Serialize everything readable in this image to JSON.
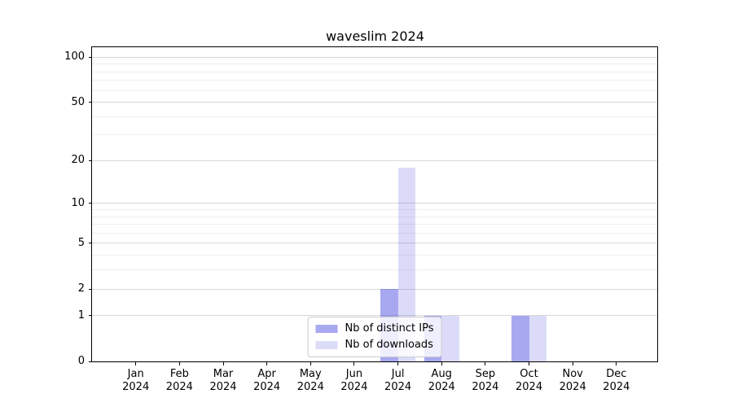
{
  "title": "waveslim 2024",
  "chart_data": {
    "type": "bar",
    "title": "waveslim 2024",
    "categories": [
      "Jan 2024",
      "Feb 2024",
      "Mar 2024",
      "Apr 2024",
      "May 2024",
      "Jun 2024",
      "Jul 2024",
      "Aug 2024",
      "Sep 2024",
      "Oct 2024",
      "Nov 2024",
      "Dec 2024"
    ],
    "series": [
      {
        "name": "Nb of distinct IPs",
        "color": "rgba(30,30,220,0.39)",
        "color_hex": "#a9a9f1",
        "values": [
          0,
          0,
          0,
          0,
          0,
          0,
          2,
          1,
          0,
          1,
          0,
          0
        ]
      },
      {
        "name": "Nb of downloads",
        "color": "rgba(30,30,220,0.16)",
        "color_hex": "#dcdcf9",
        "values": [
          0,
          0,
          0,
          0,
          0,
          0,
          18,
          1,
          0,
          1,
          0,
          0
        ]
      }
    ],
    "xlabel": "",
    "ylabel": "",
    "yscale": "log1p",
    "ylim": [
      0,
      117
    ],
    "y_ticks": [
      {
        "value": 0,
        "label": "0"
      },
      {
        "value": 1,
        "label": "1"
      },
      {
        "value": 2,
        "label": "2"
      },
      {
        "value": 5,
        "label": "5"
      },
      {
        "value": 10,
        "label": "10"
      },
      {
        "value": 20,
        "label": "20"
      },
      {
        "value": 50,
        "label": "50"
      },
      {
        "value": 100,
        "label": "100"
      }
    ],
    "y_minor_gridlines": [
      3,
      4,
      6,
      7,
      8,
      9,
      30,
      40,
      60,
      70,
      80,
      90
    ],
    "grid": "y",
    "legend_position": "lower center"
  },
  "colors": {
    "background": "#ffffff",
    "spine": "#000000",
    "major_grid": "#d8d8d8",
    "minor_grid": "#efefef",
    "tick_text": "#000000"
  }
}
